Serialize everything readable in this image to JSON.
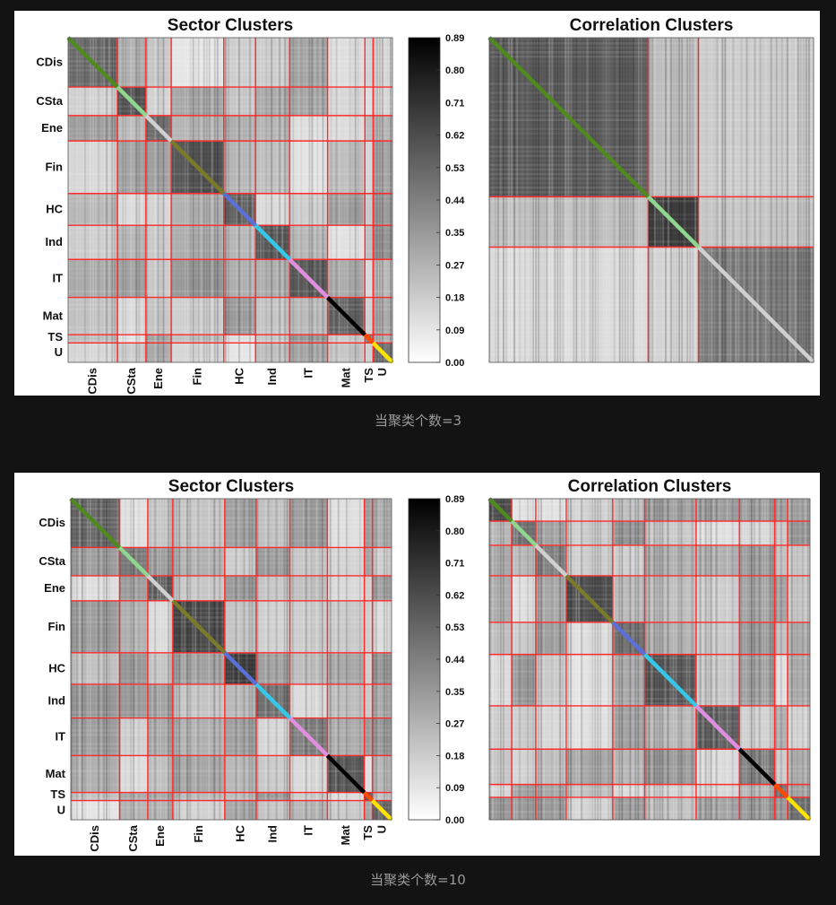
{
  "figures": [
    {
      "caption": "当聚类个数=3"
    },
    {
      "caption": "当聚类个数=10"
    }
  ],
  "colors": {
    "boundary": "#ff2a2a",
    "diagonal": [
      "#4e8a1e",
      "#8fd68f",
      "#d0d0d0",
      "#7a7a2a",
      "#5a6fd8",
      "#36c8e8",
      "#e08ee0",
      "#000000",
      "#ff4a00",
      "#ffe300"
    ]
  },
  "chart_data": [
    {
      "type": "heatmap",
      "title": "Sector Clusters",
      "sectors": [
        "CDis",
        "CSta",
        "Ene",
        "Fin",
        "HC",
        "Ind",
        "IT",
        "Mat",
        "TS",
        "U"
      ],
      "boundaries": [
        0,
        0.152,
        0.24,
        0.318,
        0.48,
        0.578,
        0.683,
        0.8,
        0.915,
        0.94,
        1.0
      ],
      "colorbar": {
        "min": 0.0,
        "max": 0.89,
        "ticks": [
          "0.89",
          "0.80",
          "0.71",
          "0.62",
          "0.53",
          "0.44",
          "0.35",
          "0.27",
          "0.18",
          "0.09",
          "0.00"
        ]
      }
    },
    {
      "type": "heatmap",
      "title": "Correlation Clusters",
      "clusters": 3,
      "boundaries": [
        0,
        0.49,
        0.645,
        1.0
      ]
    },
    {
      "type": "heatmap",
      "title": "Sector Clusters",
      "sectors": [
        "CDis",
        "CSta",
        "Ene",
        "Fin",
        "HC",
        "Ind",
        "IT",
        "Mat",
        "TS",
        "U"
      ],
      "boundaries": [
        0,
        0.152,
        0.24,
        0.318,
        0.48,
        0.578,
        0.683,
        0.8,
        0.915,
        0.94,
        1.0
      ],
      "colorbar": {
        "min": 0.0,
        "max": 0.89,
        "ticks": [
          "0.89",
          "0.80",
          "0.71",
          "0.62",
          "0.53",
          "0.44",
          "0.35",
          "0.27",
          "0.18",
          "0.09",
          "0.00"
        ]
      }
    },
    {
      "type": "heatmap",
      "title": "Correlation Clusters",
      "clusters": 10,
      "boundaries": [
        0,
        0.07,
        0.145,
        0.24,
        0.385,
        0.485,
        0.645,
        0.78,
        0.89,
        0.93,
        1.0
      ]
    }
  ]
}
